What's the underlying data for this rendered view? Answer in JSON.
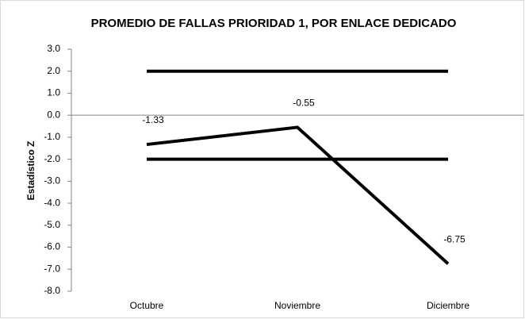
{
  "chart_data": {
    "type": "line",
    "title": "PROMEDIO DE FALLAS PRIORIDAD 1, POR ENLACE DEDICADO",
    "y_label": "Estadístico Z",
    "categories": [
      "Octubre",
      "Noviembre",
      "Diciembre"
    ],
    "series": [
      {
        "color": "#000000",
        "values": [
          2,
          2,
          2
        ]
      },
      {
        "color": "#000000",
        "values": [
          -2,
          -2,
          -2
        ]
      },
      {
        "color": "#000000",
        "values": [
          -1.33,
          -0.55,
          -6.75
        ],
        "data_labels": true
      }
    ],
    "ylim": [
      -8,
      3
    ],
    "yticks": [
      {
        "value": 3,
        "label": "3.0"
      },
      {
        "value": 2,
        "label": "2.0"
      },
      {
        "value": 1,
        "label": "1.0"
      },
      {
        "value": 0,
        "label": "0.0"
      },
      {
        "value": -1,
        "label": "-1.0"
      },
      {
        "value": -2,
        "label": "-2.0"
      },
      {
        "value": -3,
        "label": "-3.0"
      },
      {
        "value": -4,
        "label": "-4.0"
      },
      {
        "value": -5,
        "label": "-5.0"
      },
      {
        "value": -6,
        "label": "-6.0"
      },
      {
        "value": -7,
        "label": "-7.0"
      },
      {
        "value": -8,
        "label": "-8.0"
      }
    ],
    "grid": false
  }
}
